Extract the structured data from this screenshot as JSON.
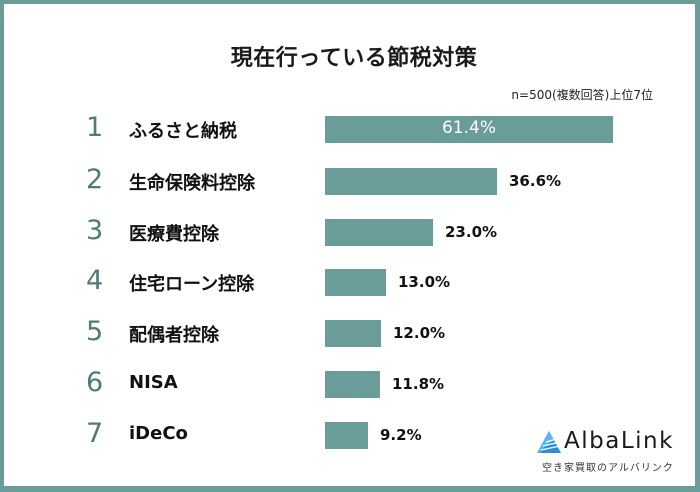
{
  "chart_data": {
    "type": "bar",
    "orientation": "horizontal",
    "title": "現在行っている節税対策",
    "subtitle": "n=500(複数回答)上位7位",
    "categories": [
      "ふるさと納税",
      "生命保険料控除",
      "医療費控除",
      "住宅ローン控除",
      "配偶者控除",
      "NISA",
      "iDeCo"
    ],
    "ranks": [
      "1",
      "2",
      "3",
      "4",
      "5",
      "6",
      "7"
    ],
    "values": [
      61.4,
      36.6,
      23.0,
      13.0,
      12.0,
      11.8,
      9.2
    ],
    "value_labels": [
      "61.4%",
      "36.6%",
      "23.0%",
      "13.0%",
      "12.0%",
      "11.8%",
      "9.2%"
    ],
    "unit": "%",
    "xlabel": "",
    "ylabel": "",
    "xlim": [
      0,
      61.4
    ],
    "grid": false,
    "legend": "none",
    "bar_color": "#6a9c99"
  },
  "header": {
    "title": "現在行っている節税対策",
    "note": "n=500(複数回答)上位7位"
  },
  "rows": [
    {
      "rank": "1",
      "label": "ふるさと納税",
      "value": 61.4,
      "value_label": "61.4%"
    },
    {
      "rank": "2",
      "label": "生命保険料控除",
      "value": 36.6,
      "value_label": "36.6%"
    },
    {
      "rank": "3",
      "label": "医療費控除",
      "value": 23.0,
      "value_label": "23.0%"
    },
    {
      "rank": "4",
      "label": "住宅ローン控除",
      "value": 13.0,
      "value_label": "13.0%"
    },
    {
      "rank": "5",
      "label": "配偶者控除",
      "value": 12.0,
      "value_label": "12.0%"
    },
    {
      "rank": "6",
      "label": "NISA",
      "value": 11.8,
      "value_label": "11.8%"
    },
    {
      "rank": "7",
      "label": "iDeCo",
      "value": 9.2,
      "value_label": "9.2%"
    }
  ],
  "logo": {
    "name": "AlbaLink",
    "tagline": "空き家買取のアルバリンク",
    "icon": "triangle-logo-icon"
  },
  "colors": {
    "frame": "#6a9c99",
    "bar": "#6a9c99",
    "rank": "#4e7b78",
    "logo_blue": "#2a8fd6"
  }
}
